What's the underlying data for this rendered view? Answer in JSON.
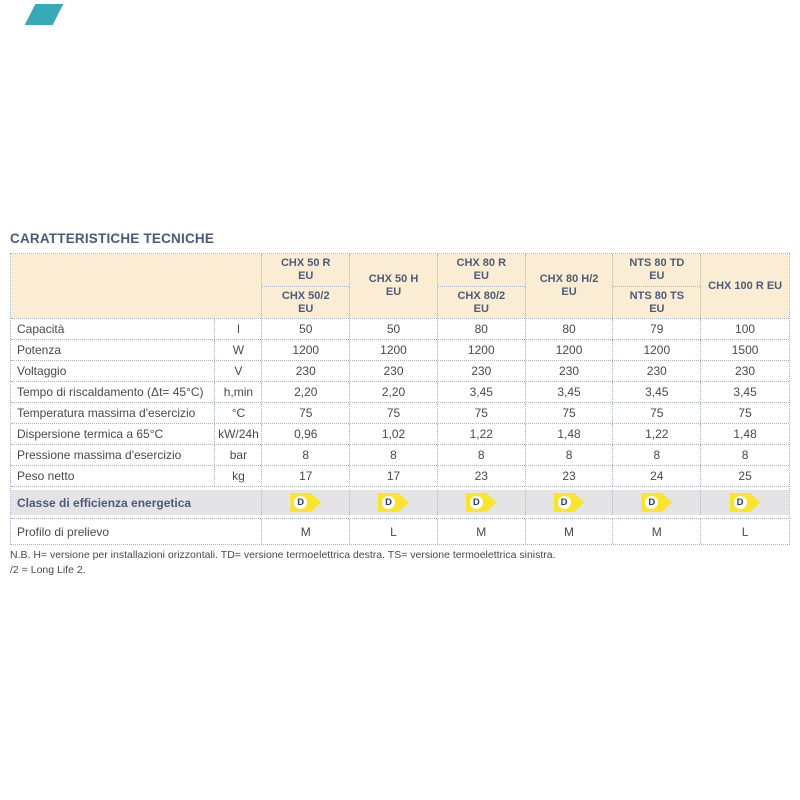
{
  "page": {
    "title": "CARATTERISTICHE TECNICHE"
  },
  "colors": {
    "corner_accent_teal": "#38a9b6",
    "title_navy": "#4a5a78",
    "header_bg_cream": "#faedd4",
    "header_text_navy": "#4d5b79",
    "border_dotted_gray": "#a9b3bf",
    "energy_row_bg_gray": "#e4e4e6",
    "badge_yellow": "#fbe42d",
    "badge_letter_navy": "#2b3a5e"
  },
  "table": {
    "column_groups": [
      {
        "type": "split",
        "top": "CHX 50 R\nEU",
        "bottom": "CHX 50/2\nEU"
      },
      {
        "type": "merged",
        "label": "CHX 50 H\nEU"
      },
      {
        "type": "split",
        "top": "CHX 80 R\nEU",
        "bottom": "CHX 80/2\nEU"
      },
      {
        "type": "merged",
        "label": "CHX 80 H/2\nEU"
      },
      {
        "type": "split",
        "top": "NTS 80 TD\nEU",
        "bottom": "NTS 80 TS\nEU"
      },
      {
        "type": "merged",
        "label": "CHX 100 R EU"
      }
    ],
    "rows": [
      {
        "label": "Capacità",
        "unit": "l",
        "values": [
          "50",
          "50",
          "80",
          "80",
          "79",
          "100"
        ]
      },
      {
        "label": "Potenza",
        "unit": "W",
        "values": [
          "1200",
          "1200",
          "1200",
          "1200",
          "1200",
          "1500"
        ]
      },
      {
        "label": "Voltaggio",
        "unit": "V",
        "values": [
          "230",
          "230",
          "230",
          "230",
          "230",
          "230"
        ]
      },
      {
        "label": "Tempo di riscaldamento (Δt= 45°C)",
        "unit": "h,min",
        "values": [
          "2,20",
          "2,20",
          "3,45",
          "3,45",
          "3,45",
          "3,45"
        ]
      },
      {
        "label": "Temperatura massima d'esercizio",
        "unit": "°C",
        "values": [
          "75",
          "75",
          "75",
          "75",
          "75",
          "75"
        ]
      },
      {
        "label": "Dispersione termica a 65°C",
        "unit": "kW/24h",
        "values": [
          "0,96",
          "1,02",
          "1,22",
          "1,48",
          "1,22",
          "1,48"
        ]
      },
      {
        "label": "Pressione massima d'esercizio",
        "unit": "bar",
        "values": [
          "8",
          "8",
          "8",
          "8",
          "8",
          "8"
        ]
      },
      {
        "label": "Peso netto",
        "unit": "kg",
        "values": [
          "17",
          "17",
          "23",
          "23",
          "24",
          "25"
        ]
      }
    ],
    "energy_row": {
      "label": "Classe di efficienza energetica",
      "values": [
        "D",
        "D",
        "D",
        "D",
        "D",
        "D"
      ]
    },
    "profile_row": {
      "label": "Profilo di prelievo",
      "values": [
        "M",
        "L",
        "M",
        "M",
        "M",
        "L"
      ]
    }
  },
  "footnote": {
    "line1": "N.B. H= versione per installazioni orizzontali. TD= versione termoelettrica destra. TS= versione termoelettrica sinistra.",
    "line2": "/2 = Long Life 2."
  }
}
